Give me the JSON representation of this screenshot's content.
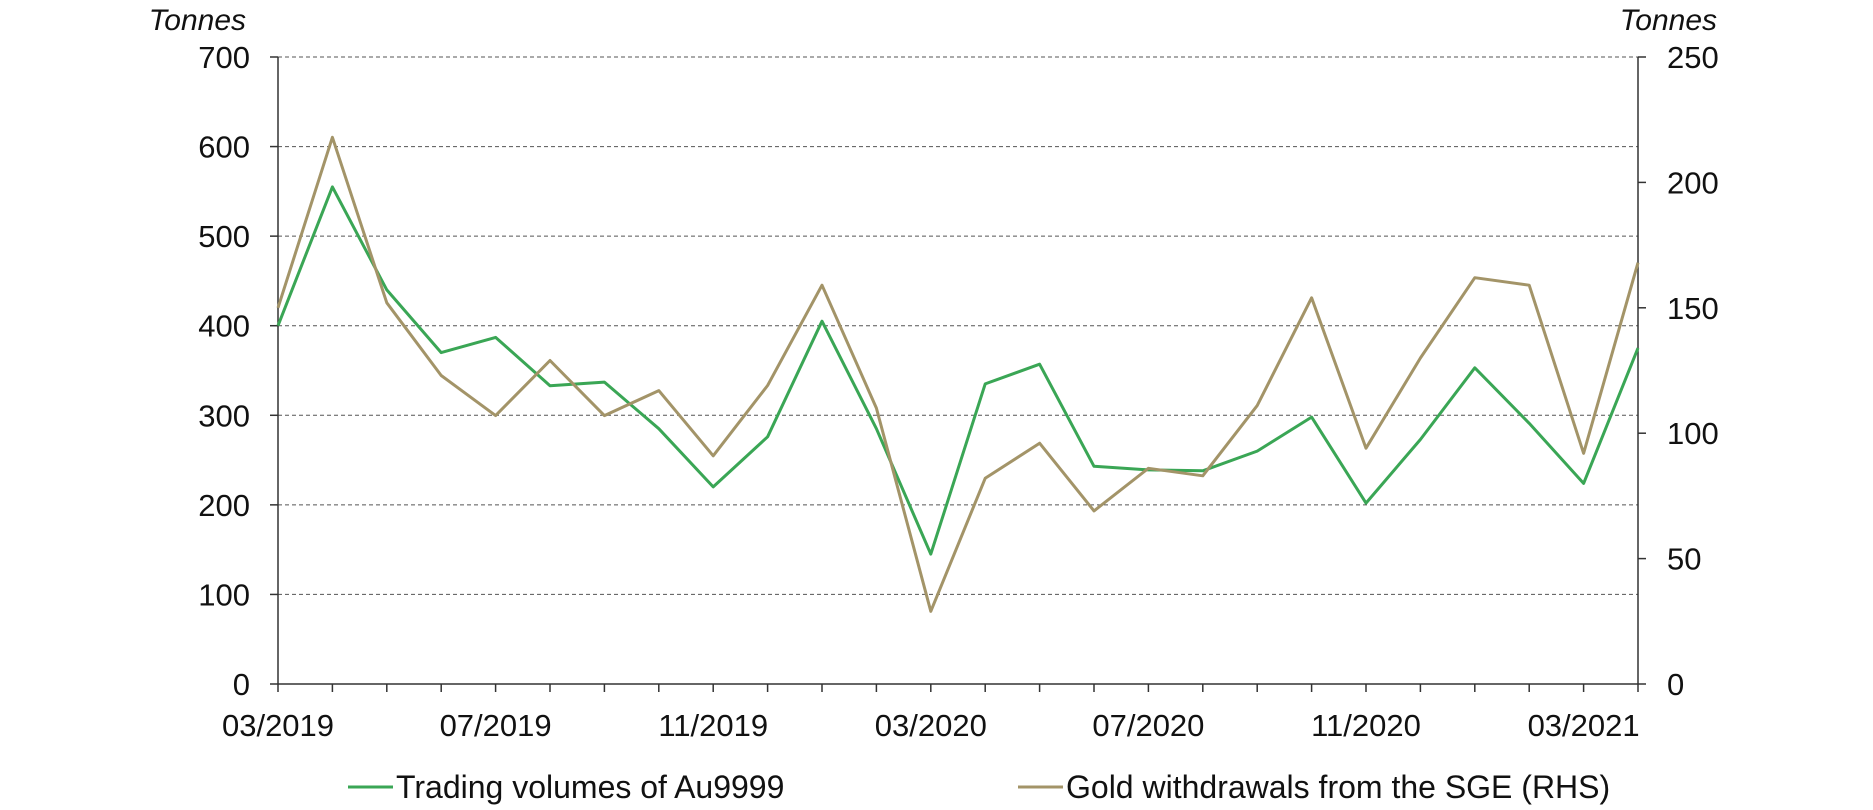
{
  "chart_data": {
    "type": "line",
    "left_unit": "Tonnes",
    "right_unit": "Tonnes",
    "y_left": {
      "min": 0,
      "max": 700,
      "ticks": [
        0,
        100,
        200,
        300,
        400,
        500,
        600,
        700
      ]
    },
    "y_right": {
      "min": 0,
      "max": 250,
      "ticks": [
        0,
        50,
        100,
        150,
        200,
        250
      ]
    },
    "grid": true,
    "legend_position": "bottom",
    "x": [
      "03/2019",
      "04/2019",
      "05/2019",
      "06/2019",
      "07/2019",
      "08/2019",
      "09/2019",
      "10/2019",
      "11/2019",
      "12/2019",
      "01/2020",
      "02/2020",
      "03/2020",
      "04/2020",
      "05/2020",
      "06/2020",
      "07/2020",
      "08/2020",
      "09/2020",
      "10/2020",
      "11/2020",
      "12/2020",
      "01/2021",
      "02/2021",
      "03/2021",
      "04/2021"
    ],
    "x_tick_labels": [
      "03/2019",
      "07/2019",
      "11/2019",
      "03/2020",
      "07/2020",
      "11/2020",
      "03/2021"
    ],
    "series": [
      {
        "name": "Trading volumes of Au9999",
        "axis": "left",
        "color": "#3aa655",
        "values": [
          400,
          555,
          440,
          370,
          387,
          333,
          337,
          285,
          220,
          276,
          405,
          285,
          145,
          335,
          357,
          243,
          239,
          238,
          260,
          298,
          202,
          273,
          353,
          291,
          224,
          375
        ]
      },
      {
        "name": "Gold withdrawals from the SGE (RHS)",
        "axis": "right",
        "color": "#a39468",
        "values": [
          150,
          218,
          152,
          123,
          107,
          129,
          107,
          117,
          91,
          119,
          159,
          110,
          29,
          82,
          96,
          69,
          86,
          83,
          111,
          154,
          94,
          130,
          162,
          159,
          92,
          168
        ]
      }
    ]
  }
}
